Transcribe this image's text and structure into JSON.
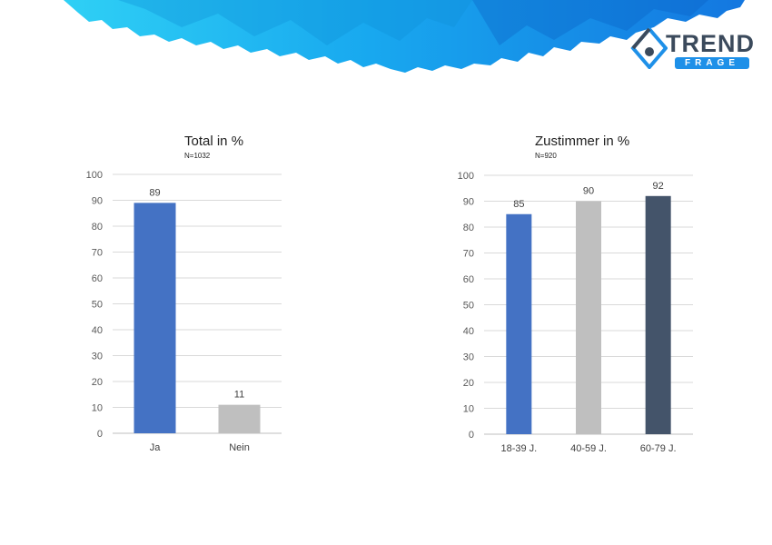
{
  "logo": {
    "word": "TREND",
    "sub": "FRAGE"
  },
  "chart_data": [
    {
      "type": "bar",
      "title": "Total in %",
      "subtitle": "N=1032",
      "categories": [
        "Ja",
        "Nein"
      ],
      "values": [
        89,
        11
      ],
      "colors": [
        "#4472c4",
        "#bfbfbf"
      ],
      "ylim": [
        0,
        100
      ],
      "yticks": [
        0,
        10,
        20,
        30,
        40,
        50,
        60,
        70,
        80,
        90,
        100
      ],
      "grid": true,
      "xlabel": "",
      "ylabel": ""
    },
    {
      "type": "bar",
      "title": "Zustimmer in %",
      "subtitle": "N=920",
      "categories": [
        "18-39 J.",
        "40-59 J.",
        "60-79 J."
      ],
      "values": [
        85,
        90,
        92
      ],
      "colors": [
        "#4472c4",
        "#bfbfbf",
        "#44546a"
      ],
      "ylim": [
        0,
        100
      ],
      "yticks": [
        0,
        10,
        20,
        30,
        40,
        50,
        60,
        70,
        80,
        90,
        100
      ],
      "grid": true,
      "xlabel": "",
      "ylabel": ""
    }
  ]
}
